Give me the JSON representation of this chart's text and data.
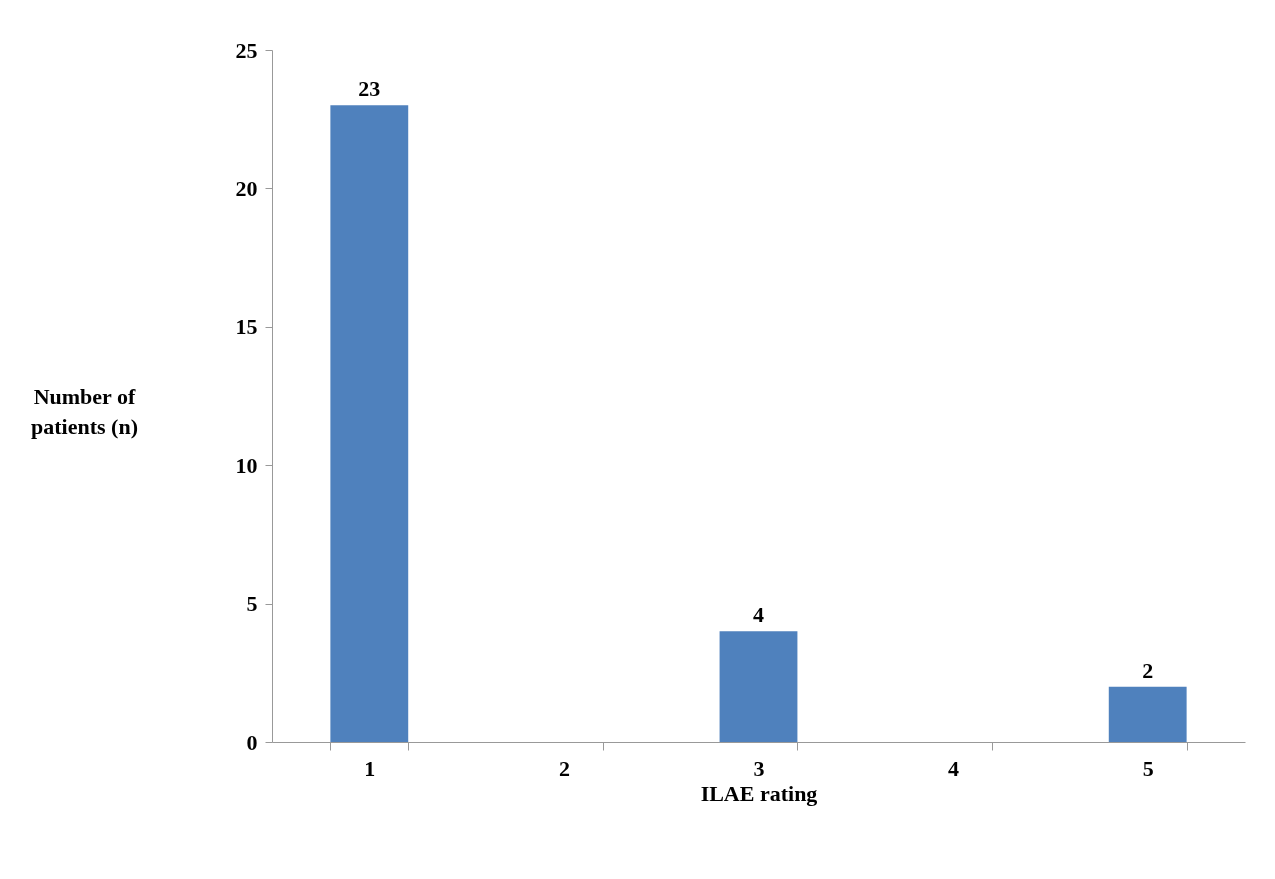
{
  "chart_data": {
    "type": "bar",
    "xlabel": "ILAE rating",
    "ylabel": "Number of patients (n)",
    "categories": [
      "1",
      "2",
      "3",
      "4",
      "5"
    ],
    "values": [
      23,
      0,
      4,
      0,
      2
    ],
    "value_labels": [
      "23",
      null,
      "4",
      null,
      "2"
    ],
    "color": "#4f81bd",
    "ylim": [
      0,
      25
    ],
    "yticks": [
      0,
      5,
      10,
      15,
      20,
      25
    ],
    "grid": false
  }
}
